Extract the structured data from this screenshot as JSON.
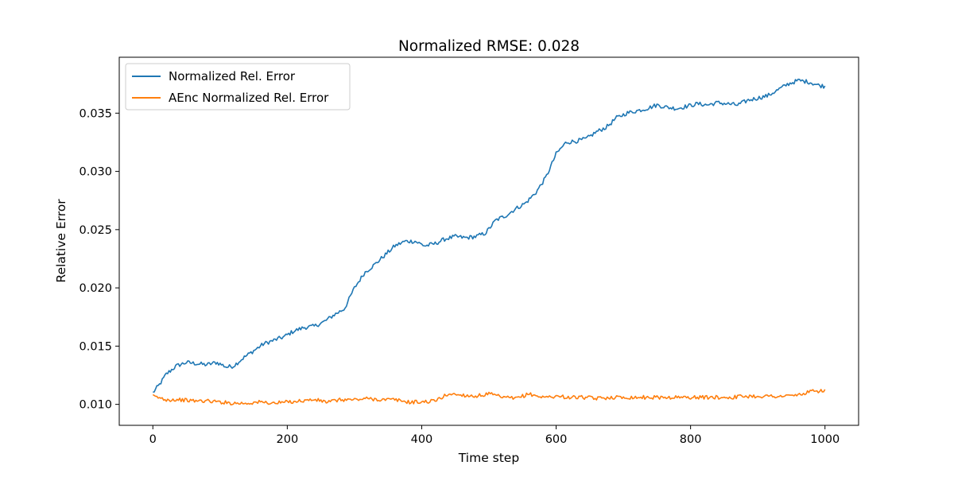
{
  "chart_data": {
    "type": "line",
    "title": "Normalized RMSE: 0.028",
    "xlabel": "Time step",
    "ylabel": "Relative Error",
    "xlim": [
      -50,
      1050
    ],
    "ylim": [
      0.0082,
      0.0398
    ],
    "xticks": [
      0,
      200,
      400,
      600,
      800,
      1000
    ],
    "xtick_labels": [
      "0",
      "200",
      "400",
      "600",
      "800",
      "1000"
    ],
    "yticks": [
      0.01,
      0.015,
      0.02,
      0.025,
      0.03,
      0.035
    ],
    "ytick_labels": [
      "0.010",
      "0.015",
      "0.020",
      "0.025",
      "0.030",
      "0.035"
    ],
    "grid": false,
    "legend_position": "upper-left",
    "series": [
      {
        "name": "Normalized Rel. Error",
        "color": "#1f77b4",
        "x": [
          0,
          10,
          20,
          35,
          50,
          65,
          80,
          95,
          110,
          120,
          135,
          150,
          165,
          180,
          195,
          210,
          225,
          240,
          255,
          270,
          285,
          300,
          315,
          330,
          345,
          360,
          375,
          390,
          405,
          420,
          435,
          450,
          465,
          480,
          495,
          510,
          525,
          540,
          555,
          570,
          585,
          600,
          615,
          630,
          645,
          660,
          675,
          690,
          705,
          720,
          735,
          750,
          765,
          780,
          795,
          810,
          825,
          840,
          855,
          870,
          885,
          900,
          915,
          930,
          945,
          960,
          975,
          990,
          1000
        ],
        "y": [
          0.011,
          0.0117,
          0.0126,
          0.0133,
          0.0136,
          0.0135,
          0.0134,
          0.0136,
          0.0132,
          0.0133,
          0.014,
          0.0146,
          0.0152,
          0.0155,
          0.0158,
          0.0163,
          0.0166,
          0.0167,
          0.0171,
          0.0177,
          0.0182,
          0.02,
          0.0213,
          0.022,
          0.0228,
          0.0236,
          0.024,
          0.024,
          0.0236,
          0.0238,
          0.0242,
          0.0244,
          0.0243,
          0.0244,
          0.0247,
          0.0258,
          0.0262,
          0.0268,
          0.0273,
          0.0282,
          0.0295,
          0.0315,
          0.0325,
          0.0326,
          0.0328,
          0.0334,
          0.0338,
          0.0346,
          0.035,
          0.0352,
          0.0354,
          0.0357,
          0.0355,
          0.0354,
          0.0356,
          0.0358,
          0.0357,
          0.0359,
          0.0358,
          0.0357,
          0.0361,
          0.0363,
          0.0365,
          0.037,
          0.0375,
          0.0378,
          0.0377,
          0.0374,
          0.0373
        ]
      },
      {
        "name": "AEnc Normalized Rel. Error",
        "color": "#ff7f0e",
        "x": [
          0,
          20,
          40,
          60,
          80,
          100,
          120,
          140,
          160,
          180,
          200,
          220,
          240,
          260,
          280,
          300,
          320,
          340,
          360,
          380,
          400,
          420,
          440,
          460,
          480,
          500,
          520,
          540,
          560,
          580,
          600,
          620,
          640,
          660,
          680,
          700,
          720,
          740,
          760,
          780,
          800,
          820,
          840,
          860,
          880,
          900,
          920,
          940,
          960,
          980,
          1000
        ],
        "y": [
          0.0107,
          0.0104,
          0.0104,
          0.0103,
          0.0103,
          0.0102,
          0.0101,
          0.0101,
          0.0102,
          0.0101,
          0.0102,
          0.0103,
          0.0104,
          0.0102,
          0.0104,
          0.0104,
          0.0105,
          0.0104,
          0.0104,
          0.0102,
          0.0102,
          0.0103,
          0.0109,
          0.0108,
          0.0107,
          0.0109,
          0.0106,
          0.0105,
          0.0109,
          0.0106,
          0.0107,
          0.0106,
          0.0106,
          0.0105,
          0.0106,
          0.0106,
          0.0106,
          0.0106,
          0.0106,
          0.0106,
          0.0106,
          0.0106,
          0.0106,
          0.0106,
          0.0107,
          0.0107,
          0.0107,
          0.0107,
          0.0108,
          0.0111,
          0.0112
        ]
      }
    ]
  }
}
